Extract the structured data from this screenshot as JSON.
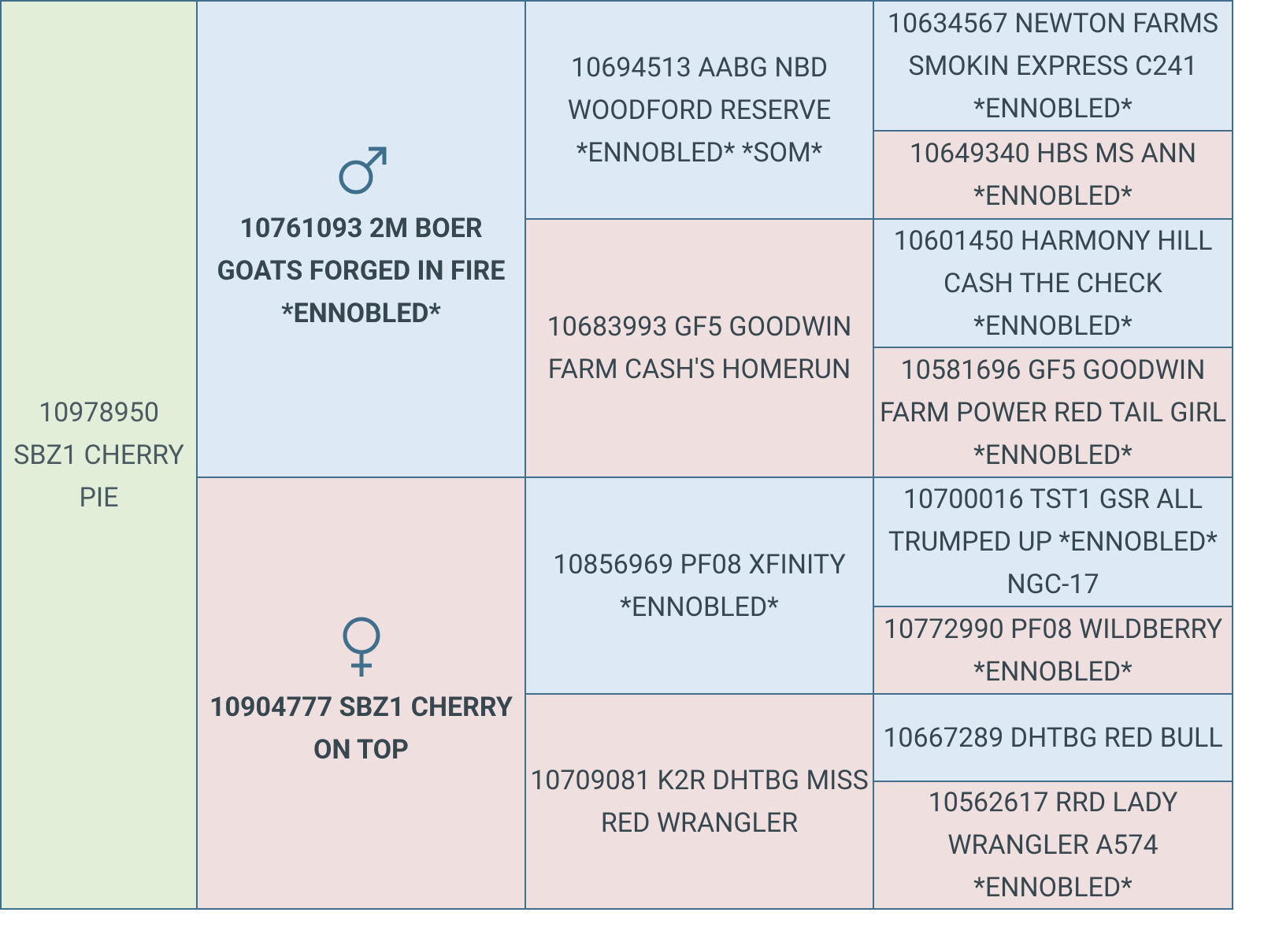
{
  "pedigree": {
    "subject": "10978950 SBZ1 CHERRY PIE",
    "parents": [
      "10761093 2M BOER GOATS FORGED IN FIRE *ENNOBLED*",
      "10904777 SBZ1 CHERRY ON TOP"
    ],
    "grandparents": [
      "10694513 AABG NBD WOODFORD RESERVE *ENNOBLED* *SOM*",
      "10683993 GF5 GOODWIN FARM CASH'S HOMERUN",
      "10856969 PF08 XFINITY *ENNOBLED*",
      "10709081 K2R DHTBG MISS RED WRANGLER"
    ],
    "great_grandparents": [
      "10634567 NEWTON FARMS SMOKIN EXPRESS C241 *ENNOBLED*",
      "10649340 HBS MS ANN *ENNOBLED*",
      "10601450 HARMONY HILL CASH THE CHECK *ENNOBLED*",
      "10581696 GF5 GOODWIN FARM POWER RED TAIL GIRL *ENNOBLED*",
      "10700016 TST1 GSR ALL TRUMPED UP *ENNOBLED* NGC-17",
      "10772990 PF08 WILDBERRY *ENNOBLED*",
      "10667289 DHTBG RED BULL",
      "10562617 RRD LADY WRANGLER A574 *ENNOBLED*"
    ]
  }
}
